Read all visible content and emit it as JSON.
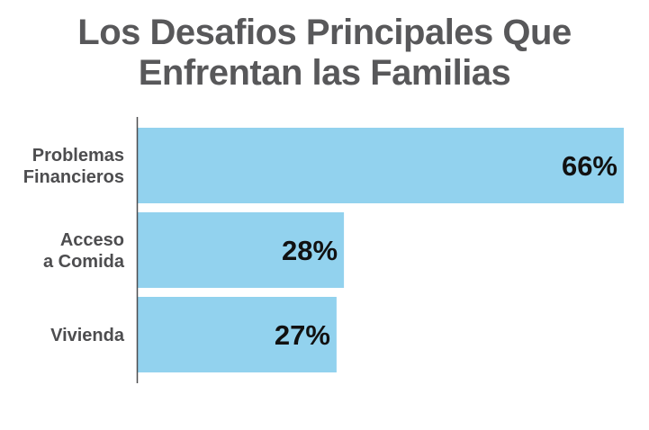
{
  "chart_data": {
    "type": "bar",
    "orientation": "horizontal",
    "title": "Los Desafios Principales Que Enfrentan las Familias",
    "title_lines": [
      "Los Desafios Principales Que",
      "Enfrentan las Familias"
    ],
    "categories": [
      {
        "lines": [
          "Problemas",
          "Financieros"
        ]
      },
      {
        "lines": [
          "Acceso",
          "a Comida"
        ]
      },
      {
        "lines": [
          "Vivienda"
        ]
      }
    ],
    "category_names": [
      "Problemas Financieros",
      "Acceso a Comida",
      "Vivienda"
    ],
    "values": [
      66,
      28,
      27
    ],
    "value_labels": [
      "66%",
      "28%",
      "27%"
    ],
    "unit": "%",
    "xlabel": "",
    "ylabel": "",
    "xlim": [
      0,
      66
    ],
    "grid": false,
    "legend": "none",
    "bar_color": "#92d2ee",
    "axis_color": "#4d4d4f"
  }
}
